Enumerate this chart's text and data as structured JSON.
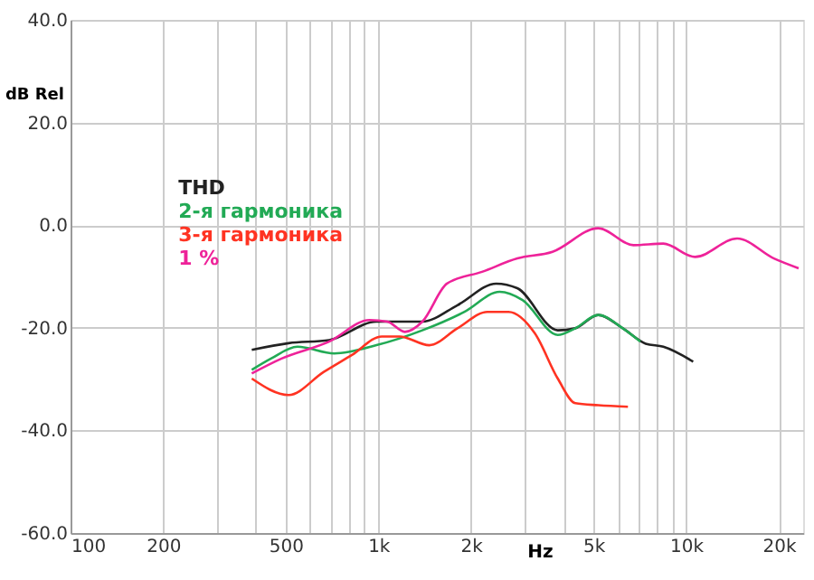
{
  "chart_data": {
    "type": "line",
    "xlabel": "Hz",
    "ylabel": "dB Rel",
    "log": "x",
    "grid": true,
    "legend": "top left",
    "marker": "none",
    "line_style": "solid",
    "xlim": [
      100,
      24000
    ],
    "ylim": [
      -60,
      40
    ],
    "xticks": [
      100,
      200,
      {
        "value": 300,
        "label": null
      },
      {
        "value": 400,
        "label": null
      },
      500,
      {
        "value": 600,
        "label": null
      },
      {
        "value": 700,
        "label": null
      },
      {
        "value": 800,
        "label": null
      },
      {
        "value": 900,
        "label": null
      },
      {
        "value": 1000,
        "label": "1k"
      },
      {
        "value": 2000,
        "label": "2k"
      },
      {
        "value": 3000,
        "label": null
      },
      {
        "value": 4000,
        "label": null
      },
      {
        "value": 5000,
        "label": "5k"
      },
      {
        "value": 6000,
        "label": null
      },
      {
        "value": 7000,
        "label": null
      },
      {
        "value": 8000,
        "label": null
      },
      {
        "value": 9000,
        "label": null
      },
      {
        "value": 10000,
        "label": "10k"
      },
      {
        "value": 20000,
        "label": "20k"
      }
    ],
    "yticks": [
      {
        "value": -60,
        "label": "-60.0"
      },
      {
        "value": -40,
        "label": "-40.0"
      },
      {
        "value": -20,
        "label": "-20.0"
      },
      {
        "value": 0,
        "label": "0.0"
      },
      {
        "value": 20,
        "label": "20.0"
      },
      {
        "value": 40,
        "label": "40.0"
      }
    ],
    "series": [
      {
        "name": "THD",
        "color": "#222222",
        "x": [
          388,
          511,
          692,
          986,
          1390,
          1808,
          2415,
          2828,
          3828,
          4365,
          5180,
          6225,
          7391,
          8430,
          10540
        ],
        "values": [
          -24.3,
          -23.0,
          -22.4,
          -18.8,
          -18.8,
          -15.6,
          -11.4,
          -12.3,
          -20.5,
          -20.1,
          -17.5,
          -20.1,
          -23.1,
          -23.7,
          -26.6
        ]
      },
      {
        "name": "2-я гармоника",
        "color": "#22aa55",
        "x": [
          388,
          448,
          546,
          719,
          986,
          1390,
          1905,
          2479,
          2941,
          3828,
          4365,
          5180,
          6225,
          7100
        ],
        "values": [
          -28.2,
          -26.0,
          -23.7,
          -25.0,
          -23.4,
          -20.5,
          -16.9,
          -13.0,
          -14.6,
          -21.4,
          -20.1,
          -17.5,
          -20.1,
          -22.7
        ]
      },
      {
        "name": "3-я гармоника",
        "color": "#ff3322",
        "x": [
          388,
          511,
          665,
          821,
          1026,
          1172,
          1464,
          1808,
          2261,
          2649,
          3226,
          3828,
          4365,
          5180,
          6471
        ],
        "values": [
          -29.9,
          -33.1,
          -28.6,
          -25.3,
          -21.7,
          -21.7,
          -23.4,
          -20.1,
          -16.9,
          -16.9,
          -21.1,
          -29.9,
          -34.7,
          -35.1,
          -35.4
        ]
      },
      {
        "name": "1 %",
        "color": "#ee2299",
        "x": [
          388,
          485,
          692,
          936,
          1069,
          1219,
          1390,
          1671,
          2173,
          2828,
          3680,
          5180,
          6745,
          8430,
          10690,
          14650,
          19300,
          23200
        ],
        "values": [
          -28.9,
          -26.0,
          -22.7,
          -18.5,
          -18.8,
          -20.8,
          -18.8,
          -11.4,
          -9.1,
          -6.5,
          -5.2,
          -0.6,
          -3.9,
          -3.6,
          -6.2,
          -2.6,
          -6.5,
          -8.4
        ]
      }
    ]
  }
}
